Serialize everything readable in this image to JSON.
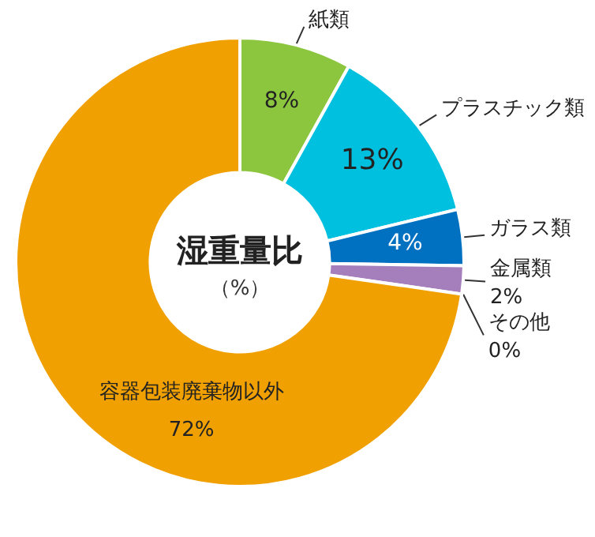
{
  "chart_data": {
    "type": "donut",
    "title": "湿重量比",
    "subtitle": "（%）",
    "categories": [
      "紙類",
      "プラスチック類",
      "ガラス類",
      "金属類",
      "その他",
      "容器包装廃棄物以外"
    ],
    "values": [
      8,
      13,
      4,
      2,
      0,
      72
    ],
    "colors": [
      "#8cc63f",
      "#00c0e0",
      "#0070c0",
      "#a47fbc",
      "#a47fbc",
      "#f0a000"
    ],
    "value_labels": [
      "8%",
      "13%",
      "4%",
      "2%",
      "0%",
      "72%"
    ]
  }
}
